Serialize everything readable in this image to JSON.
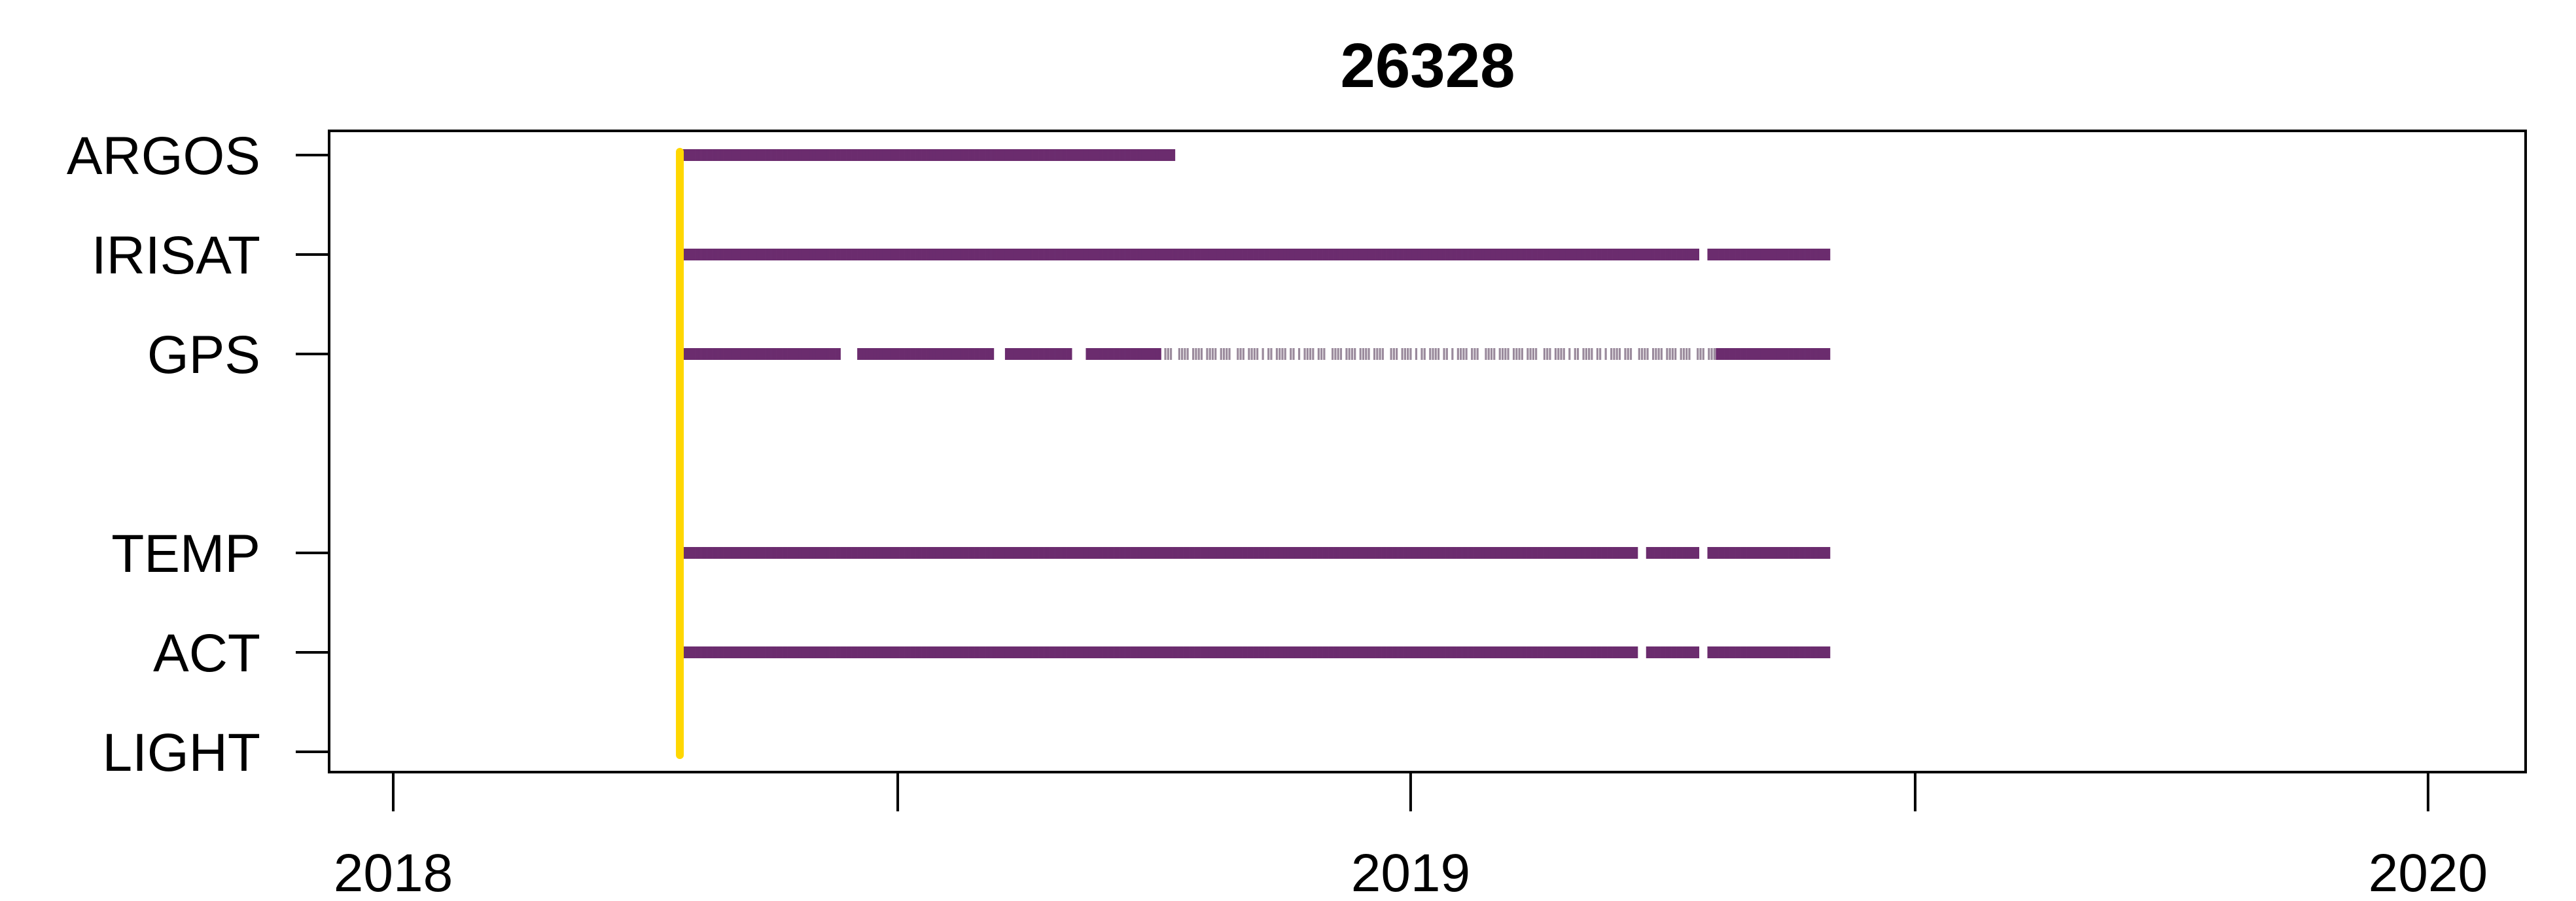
{
  "chart_data": {
    "type": "timeline",
    "title": "26328",
    "xlabel": "",
    "ylabel": "",
    "x_ticks": [
      "2018",
      "2018-07-01",
      "2019",
      "2019-07-01",
      "2020"
    ],
    "x_tick_labels": [
      "2018",
      "",
      "2019",
      "",
      "2020"
    ],
    "xlim": [
      "2017-12-09",
      "2020-02-05"
    ],
    "categories": [
      "ARGOS",
      "IRISAT",
      "GPS",
      "",
      "TEMP",
      "ACT",
      "LIGHT"
    ],
    "grid": false,
    "legend": "none",
    "colors": {
      "series": "#6b2c6e",
      "light_marker": "#ffd700",
      "sparse": "#9a8a9c",
      "axis": "#000000",
      "background": "#ffffff"
    },
    "light_marker_date": "2018-04-15",
    "series": [
      {
        "category": "ARGOS",
        "start": "2018-04-15",
        "end": "2018-10-08",
        "gaps": []
      },
      {
        "category": "IRISAT",
        "start": "2018-04-15",
        "end": "2019-05-31",
        "gaps": [
          [
            "2019-04-15",
            "2019-04-17"
          ]
        ]
      },
      {
        "category": "GPS",
        "start": "2018-04-15",
        "end": "2019-05-31",
        "gaps": [
          [
            "2018-06-11",
            "2018-06-16"
          ],
          [
            "2018-08-05",
            "2018-08-08"
          ],
          [
            "2018-09-02",
            "2018-09-06"
          ]
        ],
        "sparse": [
          [
            "2018-10-04",
            "2019-04-20"
          ]
        ]
      },
      {
        "category": "TEMP",
        "start": "2018-04-15",
        "end": "2019-05-31",
        "gaps": [
          [
            "2019-03-24",
            "2019-03-26"
          ],
          [
            "2019-04-15",
            "2019-04-17"
          ]
        ]
      },
      {
        "category": "ACT",
        "start": "2018-04-15",
        "end": "2019-05-31",
        "gaps": [
          [
            "2019-03-24",
            "2019-03-26"
          ],
          [
            "2019-04-15",
            "2019-04-17"
          ]
        ]
      }
    ]
  }
}
